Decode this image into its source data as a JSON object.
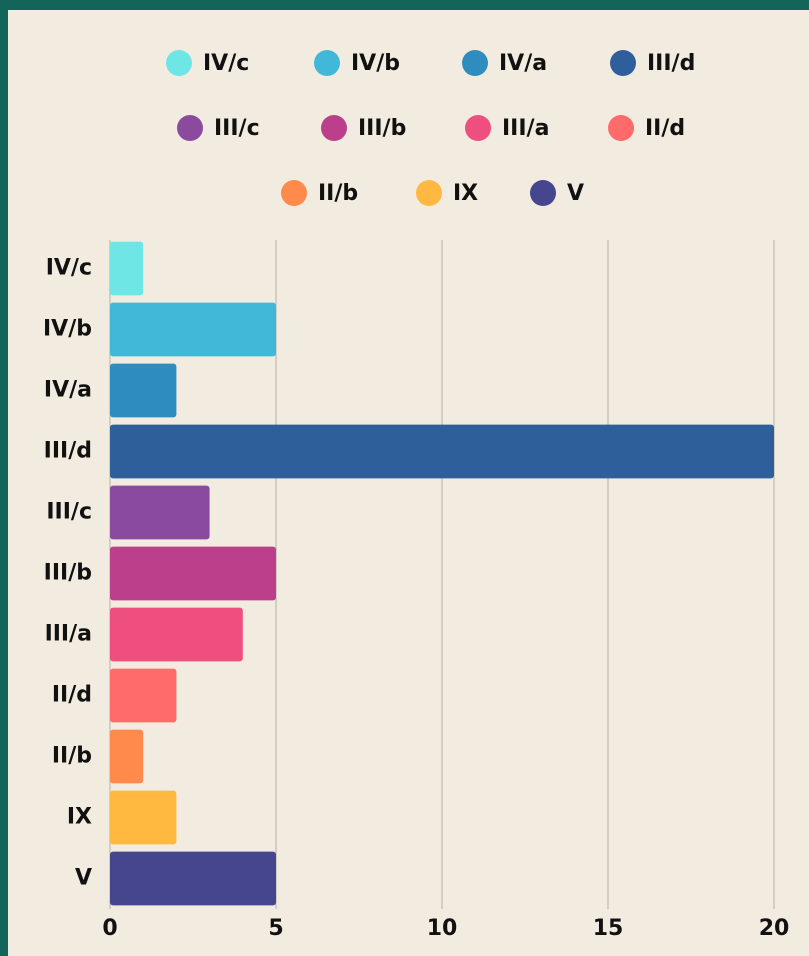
{
  "chart_data": {
    "type": "bar",
    "orientation": "horizontal",
    "categories": [
      "IV/c",
      "IV/b",
      "IV/a",
      "III/d",
      "III/c",
      "III/b",
      "III/a",
      "II/d",
      "II/b",
      "IX",
      "V"
    ],
    "values": [
      1,
      5,
      2,
      20,
      3,
      5,
      4,
      2,
      1,
      2,
      5
    ],
    "colors": [
      "#6ee6e6",
      "#42b8d8",
      "#2e8cbf",
      "#2e5f9a",
      "#8a4a9e",
      "#bb3f8a",
      "#ef4f7f",
      "#ff6b6b",
      "#ff8a4c",
      "#ffb940",
      "#46468e"
    ],
    "xlim": [
      0,
      20
    ],
    "xticks": [
      0,
      5,
      10,
      15,
      20
    ],
    "grid": true,
    "legend": "top"
  }
}
